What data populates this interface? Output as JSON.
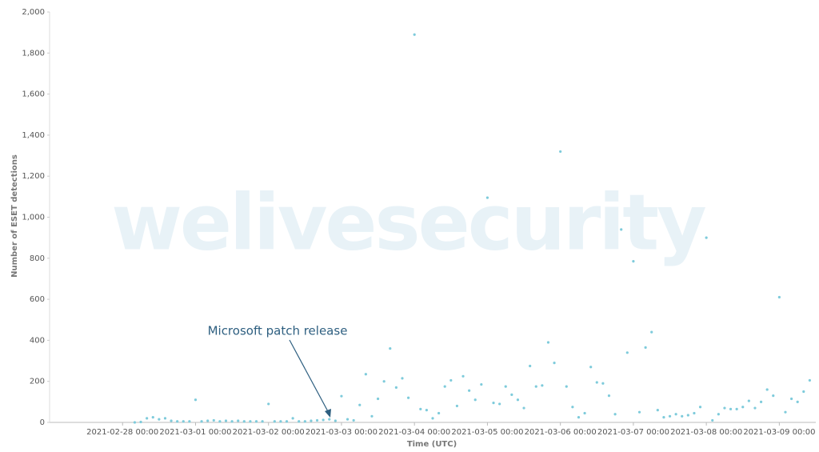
{
  "chart_data": {
    "type": "line",
    "watermark": "welivesecurity",
    "xlabel": "Time (UTC)",
    "ylabel": "Number of ESET detections",
    "annotation": "Microsoft patch release",
    "xlim": [
      "2021-02-27 00:00",
      "2021-03-09 12:00"
    ],
    "xticks": [
      "2021-02-28 00:00",
      "2021-03-01 00:00",
      "2021-03-02 00:00",
      "2021-03-03 00:00",
      "2021-03-04 00:00",
      "2021-03-05 00:00",
      "2021-03-06 00:00",
      "2021-03-07 00:00",
      "2021-03-08 00:00",
      "2021-03-09 00:00"
    ],
    "ylim": [
      0,
      2000
    ],
    "yticks": [
      0,
      200,
      400,
      600,
      800,
      {
        "value": 1000,
        "label": "1,000"
      },
      {
        "value": 1200,
        "label": "1,200"
      },
      {
        "value": 1400,
        "label": "1,400"
      },
      {
        "value": 1600,
        "label": "1,600"
      },
      {
        "value": 1800,
        "label": "1,800"
      },
      {
        "value": 2000,
        "label": "2,000"
      }
    ],
    "grid": false,
    "x": [
      "2021-02-28 04:00",
      "2021-02-28 06:00",
      "2021-02-28 08:00",
      "2021-02-28 10:00",
      "2021-02-28 12:00",
      "2021-02-28 14:00",
      "2021-02-28 16:00",
      "2021-02-28 18:00",
      "2021-02-28 20:00",
      "2021-02-28 22:00",
      "2021-03-01 00:00",
      "2021-03-01 02:00",
      "2021-03-01 04:00",
      "2021-03-01 06:00",
      "2021-03-01 08:00",
      "2021-03-01 10:00",
      "2021-03-01 12:00",
      "2021-03-01 14:00",
      "2021-03-01 16:00",
      "2021-03-01 18:00",
      "2021-03-01 20:00",
      "2021-03-01 22:00",
      "2021-03-02 00:00",
      "2021-03-02 02:00",
      "2021-03-02 04:00",
      "2021-03-02 06:00",
      "2021-03-02 08:00",
      "2021-03-02 10:00",
      "2021-03-02 12:00",
      "2021-03-02 14:00",
      "2021-03-02 16:00",
      "2021-03-02 18:00",
      "2021-03-02 20:00",
      "2021-03-02 22:00",
      "2021-03-03 00:00",
      "2021-03-03 02:00",
      "2021-03-03 04:00",
      "2021-03-03 06:00",
      "2021-03-03 08:00",
      "2021-03-03 10:00",
      "2021-03-03 12:00",
      "2021-03-03 14:00",
      "2021-03-03 16:00",
      "2021-03-03 18:00",
      "2021-03-03 20:00",
      "2021-03-03 22:00",
      "2021-03-04 00:00",
      "2021-03-04 02:00",
      "2021-03-04 04:00",
      "2021-03-04 06:00",
      "2021-03-04 08:00",
      "2021-03-04 10:00",
      "2021-03-04 12:00",
      "2021-03-04 14:00",
      "2021-03-04 16:00",
      "2021-03-04 18:00",
      "2021-03-04 20:00",
      "2021-03-04 22:00",
      "2021-03-05 00:00",
      "2021-03-05 02:00",
      "2021-03-05 04:00",
      "2021-03-05 06:00",
      "2021-03-05 08:00",
      "2021-03-05 10:00",
      "2021-03-05 12:00",
      "2021-03-05 14:00",
      "2021-03-05 16:00",
      "2021-03-05 18:00",
      "2021-03-05 20:00",
      "2021-03-05 22:00",
      "2021-03-06 00:00",
      "2021-03-06 02:00",
      "2021-03-06 04:00",
      "2021-03-06 06:00",
      "2021-03-06 08:00",
      "2021-03-06 10:00",
      "2021-03-06 12:00",
      "2021-03-06 14:00",
      "2021-03-06 16:00",
      "2021-03-06 18:00",
      "2021-03-06 20:00",
      "2021-03-06 22:00",
      "2021-03-07 00:00",
      "2021-03-07 02:00",
      "2021-03-07 04:00",
      "2021-03-07 06:00",
      "2021-03-07 08:00",
      "2021-03-07 10:00",
      "2021-03-07 12:00",
      "2021-03-07 14:00",
      "2021-03-07 16:00",
      "2021-03-07 18:00",
      "2021-03-07 20:00",
      "2021-03-07 22:00",
      "2021-03-08 00:00",
      "2021-03-08 02:00",
      "2021-03-08 04:00",
      "2021-03-08 06:00",
      "2021-03-08 08:00",
      "2021-03-08 10:00",
      "2021-03-08 12:00",
      "2021-03-08 14:00",
      "2021-03-08 16:00",
      "2021-03-08 18:00",
      "2021-03-08 20:00",
      "2021-03-08 22:00",
      "2021-03-09 00:00",
      "2021-03-09 02:00",
      "2021-03-09 04:00",
      "2021-03-09 06:00",
      "2021-03-09 08:00",
      "2021-03-09 10:00"
    ],
    "series": [
      {
        "name": "Number of ESET detections",
        "color": "#7ecbdb",
        "values": [
          0,
          2,
          20,
          25,
          15,
          20,
          8,
          5,
          5,
          5,
          110,
          5,
          8,
          10,
          5,
          8,
          5,
          8,
          5,
          5,
          5,
          5,
          90,
          5,
          5,
          5,
          20,
          5,
          5,
          8,
          10,
          12,
          15,
          8,
          128,
          15,
          10,
          85,
          235,
          30,
          115,
          200,
          360,
          170,
          215,
          120,
          1890,
          65,
          60,
          20,
          45,
          175,
          205,
          80,
          225,
          155,
          110,
          185,
          1095,
          95,
          90,
          175,
          135,
          110,
          70,
          275,
          175,
          180,
          390,
          290,
          1320,
          175,
          75,
          25,
          45,
          270,
          195,
          190,
          130,
          40,
          940,
          340,
          785,
          50,
          365,
          440,
          60,
          25,
          30,
          40,
          30,
          35,
          45,
          75,
          900,
          10,
          40,
          70,
          65,
          65,
          75,
          105,
          70,
          100,
          160,
          130,
          610,
          50,
          115,
          100,
          150,
          205
        ]
      }
    ]
  }
}
